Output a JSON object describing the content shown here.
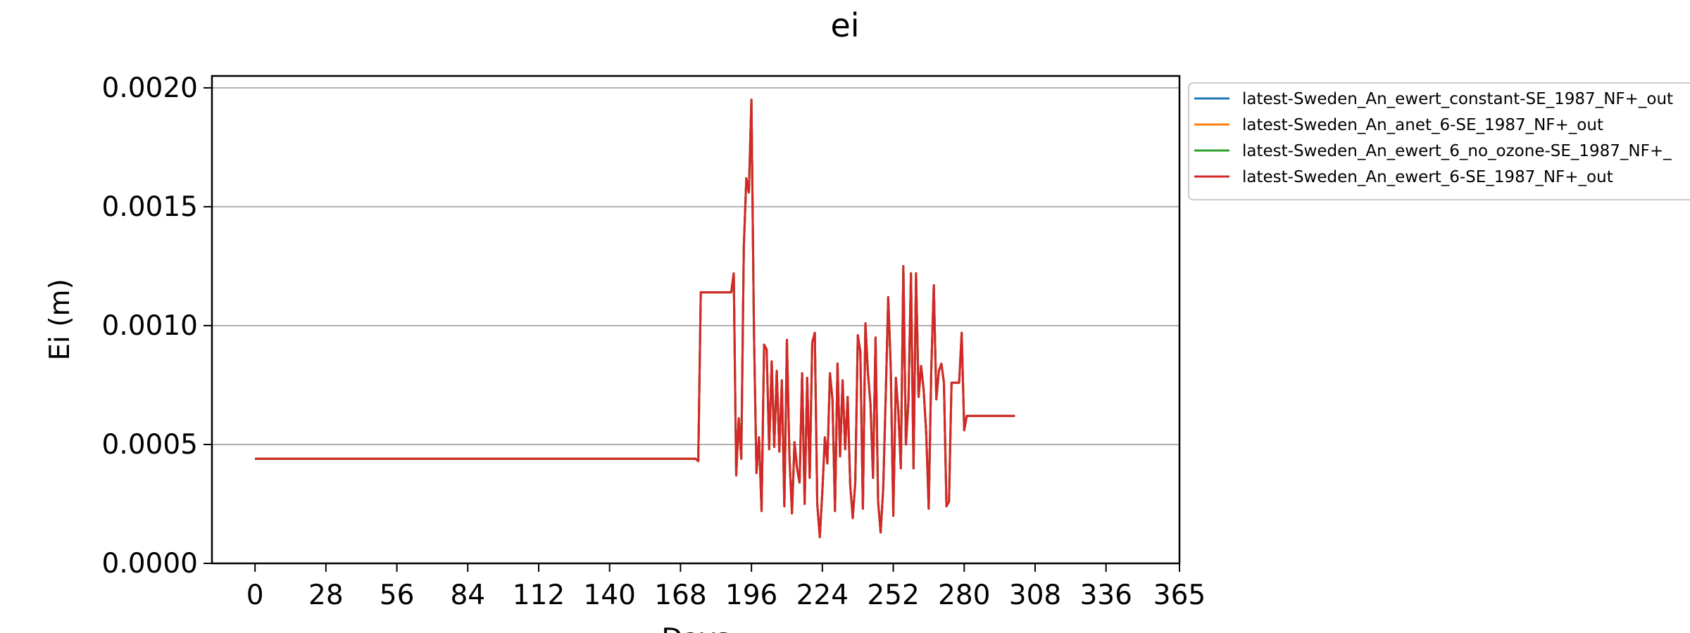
{
  "chart_data": {
    "type": "line",
    "title": "ei",
    "xlabel": "Days",
    "ylabel": "Ei (m)",
    "xlim": [
      -17,
      365
    ],
    "ylim": [
      0,
      0.00205
    ],
    "xticks": [
      0,
      28,
      56,
      84,
      112,
      140,
      168,
      196,
      224,
      252,
      280,
      308,
      336,
      365
    ],
    "yticks": [
      0,
      0.0005,
      0.001,
      0.0015,
      0.002
    ],
    "ytick_labels": [
      "0.0000",
      "0.0005",
      "0.0010",
      "0.0015",
      "0.0020"
    ],
    "grid": "horizontal",
    "legend_position": "outside upper right",
    "series": [
      {
        "name": "latest-Sweden_An_ewert_constant-SE_1987_NF+_out",
        "color": "#1f77b4",
        "x": [
          0,
          174,
          175,
          176,
          188,
          189,
          190,
          191,
          192,
          193,
          194,
          195,
          196,
          197,
          198,
          199,
          200,
          201,
          202,
          203,
          204,
          205,
          206,
          207,
          208,
          209,
          210,
          211,
          212,
          213,
          214,
          215,
          216,
          217,
          218,
          219,
          220,
          221,
          222,
          223,
          224,
          225,
          226,
          227,
          228,
          229,
          230,
          231,
          232,
          233,
          234,
          235,
          236,
          237,
          238,
          239,
          240,
          241,
          242,
          243,
          244,
          245,
          246,
          247,
          248,
          249,
          250,
          251,
          252,
          253,
          254,
          255,
          256,
          257,
          258,
          259,
          260,
          261,
          262,
          263,
          264,
          265,
          266,
          267,
          268,
          269,
          270,
          271,
          272,
          273,
          274,
          275,
          276,
          277,
          278,
          279,
          280,
          281,
          281.5,
          282,
          300
        ],
        "y": [
          0.00044,
          0.00044,
          0.00043,
          0.00114,
          0.00114,
          0.00122,
          0.00037,
          0.00061,
          0.00044,
          0.00133,
          0.00162,
          0.00156,
          0.00195,
          0.00098,
          0.00038,
          0.00053,
          0.00022,
          0.00092,
          0.0009,
          0.00048,
          0.00085,
          0.00049,
          0.00081,
          0.00047,
          0.00077,
          0.00024,
          0.00094,
          0.00045,
          0.00021,
          0.00051,
          0.0004,
          0.00034,
          0.0008,
          0.00025,
          0.00078,
          0.00036,
          0.00093,
          0.00097,
          0.00025,
          0.00011,
          0.0003,
          0.00053,
          0.00042,
          0.0008,
          0.00069,
          0.00022,
          0.00084,
          0.00045,
          0.00077,
          0.00048,
          0.0007,
          0.00033,
          0.00019,
          0.00034,
          0.00096,
          0.00089,
          0.00023,
          0.00101,
          0.0008,
          0.00067,
          0.00036,
          0.00095,
          0.00026,
          0.00013,
          0.00031,
          0.0007,
          0.00112,
          0.00082,
          0.0002,
          0.00078,
          0.00064,
          0.0004,
          0.00125,
          0.0005,
          0.00068,
          0.00122,
          0.0004,
          0.00122,
          0.0007,
          0.00083,
          0.00073,
          0.00055,
          0.00023,
          0.00081,
          0.00117,
          0.00069,
          0.00081,
          0.00084,
          0.00076,
          0.00024,
          0.00026,
          0.00076,
          0.00076,
          0.00076,
          0.00076,
          0.00097,
          0.00056,
          0.00062,
          0.00062,
          0.00062,
          0.00062
        ]
      },
      {
        "name": "latest-Sweden_An_anet_6-SE_1987_NF+_out",
        "color": "#ff7f0e",
        "x": [
          0,
          174,
          175,
          176,
          188,
          189,
          190,
          191,
          192,
          193,
          194,
          195,
          196,
          197,
          198,
          199,
          200,
          201,
          202,
          203,
          204,
          205,
          206,
          207,
          208,
          209,
          210,
          211,
          212,
          213,
          214,
          215,
          216,
          217,
          218,
          219,
          220,
          221,
          222,
          223,
          224,
          225,
          226,
          227,
          228,
          229,
          230,
          231,
          232,
          233,
          234,
          235,
          236,
          237,
          238,
          239,
          240,
          241,
          242,
          243,
          244,
          245,
          246,
          247,
          248,
          249,
          250,
          251,
          252,
          253,
          254,
          255,
          256,
          257,
          258,
          259,
          260,
          261,
          262,
          263,
          264,
          265,
          266,
          267,
          268,
          269,
          270,
          271,
          272,
          273,
          274,
          275,
          276,
          277,
          278,
          279,
          280,
          281,
          281.5,
          282,
          300
        ],
        "y": [
          0.00044,
          0.00044,
          0.00043,
          0.00114,
          0.00114,
          0.00122,
          0.00037,
          0.00061,
          0.00044,
          0.00133,
          0.00162,
          0.00156,
          0.00195,
          0.00098,
          0.00038,
          0.00053,
          0.00022,
          0.00092,
          0.0009,
          0.00048,
          0.00085,
          0.00049,
          0.00081,
          0.00047,
          0.00077,
          0.00024,
          0.00094,
          0.00045,
          0.00021,
          0.00051,
          0.0004,
          0.00034,
          0.0008,
          0.00025,
          0.00078,
          0.00036,
          0.00093,
          0.00097,
          0.00025,
          0.00011,
          0.0003,
          0.00053,
          0.00042,
          0.0008,
          0.00069,
          0.00022,
          0.00084,
          0.00045,
          0.00077,
          0.00048,
          0.0007,
          0.00033,
          0.00019,
          0.00034,
          0.00096,
          0.00089,
          0.00023,
          0.00101,
          0.0008,
          0.00067,
          0.00036,
          0.00095,
          0.00026,
          0.00013,
          0.00031,
          0.0007,
          0.00112,
          0.00082,
          0.0002,
          0.00078,
          0.00064,
          0.0004,
          0.00125,
          0.0005,
          0.00068,
          0.00122,
          0.0004,
          0.00122,
          0.0007,
          0.00083,
          0.00073,
          0.00055,
          0.00023,
          0.00081,
          0.00117,
          0.00069,
          0.00081,
          0.00084,
          0.00076,
          0.00024,
          0.00026,
          0.00076,
          0.00076,
          0.00076,
          0.00076,
          0.00097,
          0.00056,
          0.00062,
          0.00062,
          0.00062,
          0.00062
        ]
      },
      {
        "name": "latest-Sweden_An_ewert_6_no_ozone-SE_1987_NF+_",
        "color": "#2ca02c",
        "x": [
          0,
          174,
          175,
          176,
          188,
          189,
          190,
          191,
          192,
          193,
          194,
          195,
          196,
          197,
          198,
          199,
          200,
          201,
          202,
          203,
          204,
          205,
          206,
          207,
          208,
          209,
          210,
          211,
          212,
          213,
          214,
          215,
          216,
          217,
          218,
          219,
          220,
          221,
          222,
          223,
          224,
          225,
          226,
          227,
          228,
          229,
          230,
          231,
          232,
          233,
          234,
          235,
          236,
          237,
          238,
          239,
          240,
          241,
          242,
          243,
          244,
          245,
          246,
          247,
          248,
          249,
          250,
          251,
          252,
          253,
          254,
          255,
          256,
          257,
          258,
          259,
          260,
          261,
          262,
          263,
          264,
          265,
          266,
          267,
          268,
          269,
          270,
          271,
          272,
          273,
          274,
          275,
          276,
          277,
          278,
          279,
          280,
          281,
          281.5,
          282,
          300
        ],
        "y": [
          0.00044,
          0.00044,
          0.00043,
          0.00114,
          0.00114,
          0.00122,
          0.00037,
          0.00061,
          0.00044,
          0.00133,
          0.00162,
          0.00156,
          0.00195,
          0.00098,
          0.00038,
          0.00053,
          0.00022,
          0.00092,
          0.0009,
          0.00048,
          0.00085,
          0.00049,
          0.00081,
          0.00047,
          0.00077,
          0.00024,
          0.00094,
          0.00045,
          0.00021,
          0.00051,
          0.0004,
          0.00034,
          0.0008,
          0.00025,
          0.00078,
          0.00036,
          0.00093,
          0.00097,
          0.00025,
          0.00011,
          0.0003,
          0.00053,
          0.00042,
          0.0008,
          0.00069,
          0.00022,
          0.00084,
          0.00045,
          0.00077,
          0.00048,
          0.0007,
          0.00033,
          0.00019,
          0.00034,
          0.00096,
          0.00089,
          0.00023,
          0.00101,
          0.0008,
          0.00067,
          0.00036,
          0.00095,
          0.00026,
          0.00013,
          0.00031,
          0.0007,
          0.00112,
          0.00082,
          0.0002,
          0.00078,
          0.00064,
          0.0004,
          0.00125,
          0.0005,
          0.00068,
          0.00122,
          0.0004,
          0.00122,
          0.0007,
          0.00083,
          0.00073,
          0.00055,
          0.00023,
          0.00081,
          0.00117,
          0.00069,
          0.00081,
          0.00084,
          0.00076,
          0.00024,
          0.00026,
          0.00076,
          0.00076,
          0.00076,
          0.00076,
          0.00097,
          0.00056,
          0.00062,
          0.00062,
          0.00062,
          0.00062
        ]
      },
      {
        "name": "latest-Sweden_An_ewert_6-SE_1987_NF+_out",
        "color": "#d62728",
        "x": [
          0,
          174,
          175,
          176,
          188,
          189,
          190,
          191,
          192,
          193,
          194,
          195,
          196,
          197,
          198,
          199,
          200,
          201,
          202,
          203,
          204,
          205,
          206,
          207,
          208,
          209,
          210,
          211,
          212,
          213,
          214,
          215,
          216,
          217,
          218,
          219,
          220,
          221,
          222,
          223,
          224,
          225,
          226,
          227,
          228,
          229,
          230,
          231,
          232,
          233,
          234,
          235,
          236,
          237,
          238,
          239,
          240,
          241,
          242,
          243,
          244,
          245,
          246,
          247,
          248,
          249,
          250,
          251,
          252,
          253,
          254,
          255,
          256,
          257,
          258,
          259,
          260,
          261,
          262,
          263,
          264,
          265,
          266,
          267,
          268,
          269,
          270,
          271,
          272,
          273,
          274,
          275,
          276,
          277,
          278,
          279,
          280,
          281,
          281.5,
          282,
          300
        ],
        "y": [
          0.00044,
          0.00044,
          0.00043,
          0.00114,
          0.00114,
          0.00122,
          0.00037,
          0.00061,
          0.00044,
          0.00133,
          0.00162,
          0.00156,
          0.00195,
          0.00098,
          0.00038,
          0.00053,
          0.00022,
          0.00092,
          0.0009,
          0.00048,
          0.00085,
          0.00049,
          0.00081,
          0.00047,
          0.00077,
          0.00024,
          0.00094,
          0.00045,
          0.00021,
          0.00051,
          0.0004,
          0.00034,
          0.0008,
          0.00025,
          0.00078,
          0.00036,
          0.00093,
          0.00097,
          0.00025,
          0.00011,
          0.0003,
          0.00053,
          0.00042,
          0.0008,
          0.00069,
          0.00022,
          0.00084,
          0.00045,
          0.00077,
          0.00048,
          0.0007,
          0.00033,
          0.00019,
          0.00034,
          0.00096,
          0.00089,
          0.00023,
          0.00101,
          0.0008,
          0.00067,
          0.00036,
          0.00095,
          0.00026,
          0.00013,
          0.00031,
          0.0007,
          0.00112,
          0.00082,
          0.0002,
          0.00078,
          0.00064,
          0.0004,
          0.00125,
          0.0005,
          0.00068,
          0.00122,
          0.0004,
          0.00122,
          0.0007,
          0.00083,
          0.00073,
          0.00055,
          0.00023,
          0.00081,
          0.00117,
          0.00069,
          0.00081,
          0.00084,
          0.00076,
          0.00024,
          0.00026,
          0.00076,
          0.00076,
          0.00076,
          0.00076,
          0.00097,
          0.00056,
          0.00062,
          0.00062,
          0.00062,
          0.00062
        ]
      }
    ]
  }
}
